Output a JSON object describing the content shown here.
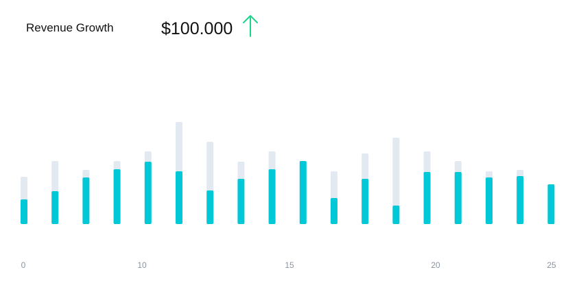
{
  "header": {
    "title": "Revenue Growth",
    "amount": "$100.000",
    "trend_icon": "arrow-up-icon",
    "trend_color": "#1ed48a"
  },
  "chart_data": {
    "type": "bar",
    "title": "Revenue Growth",
    "value_colors": {
      "primary": "#00c8d7",
      "background": "#e3e9f1"
    },
    "grid": false,
    "x_ticks": [
      "0",
      "10",
      "15",
      "20",
      "25"
    ],
    "ylim": [
      0,
      150
    ],
    "series": [
      {
        "values": [
          36,
          48,
          68,
          80,
          91,
          77,
          49,
          66,
          80,
          92,
          38,
          66,
          27,
          76,
          76,
          68,
          70,
          58
        ]
      },
      {
        "values": [
          69,
          92,
          79,
          92,
          106,
          149,
          120,
          91,
          106,
          92,
          77,
          103,
          126,
          106,
          92,
          77,
          79,
          58
        ]
      }
    ]
  }
}
